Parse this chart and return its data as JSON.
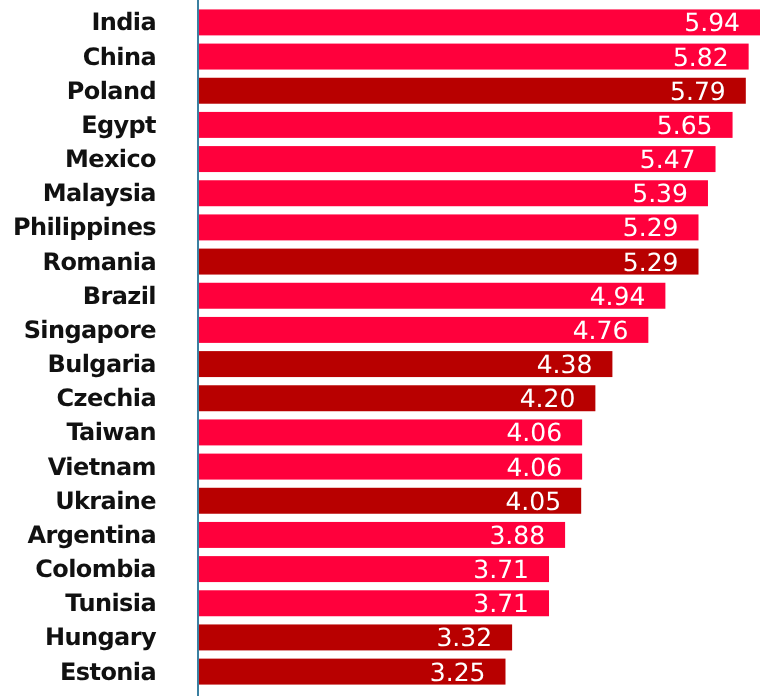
{
  "chart_data": {
    "type": "bar",
    "orientation": "horizontal",
    "categories": [
      "India",
      "China",
      "Poland",
      "Egypt",
      "Mexico",
      "Malaysia",
      "Philippines",
      "Romania",
      "Brazil",
      "Singapore",
      "Bulgaria",
      "Czechia",
      "Taiwan",
      "Vietnam",
      "Ukraine",
      "Argentina",
      "Colombia",
      "Tunisia",
      "Hungary",
      "Estonia"
    ],
    "values": [
      5.94,
      5.82,
      5.79,
      5.65,
      5.47,
      5.39,
      5.29,
      5.29,
      4.94,
      4.76,
      4.38,
      4.2,
      4.06,
      4.06,
      4.05,
      3.88,
      3.71,
      3.71,
      3.32,
      3.25
    ],
    "colors": [
      "#ff003c",
      "#ff003c",
      "#b80000",
      "#ff003c",
      "#ff003c",
      "#ff003c",
      "#ff003c",
      "#b80000",
      "#ff003c",
      "#ff003c",
      "#b80000",
      "#b80000",
      "#ff003c",
      "#ff003c",
      "#b80000",
      "#ff003c",
      "#ff003c",
      "#ff003c",
      "#b80000",
      "#b80000"
    ],
    "value_labels": [
      "5.94",
      "5.82",
      "5.79",
      "5.65",
      "5.47",
      "5.39",
      "5.29",
      "5.29",
      "4.94",
      "4.76",
      "4.38",
      "4.20",
      "4.06",
      "4.06",
      "4.05",
      "3.88",
      "3.71",
      "3.71",
      "3.32",
      "3.25"
    ],
    "xlim": [
      0,
      5.94
    ],
    "tick_labels": "y",
    "grid": false
  }
}
